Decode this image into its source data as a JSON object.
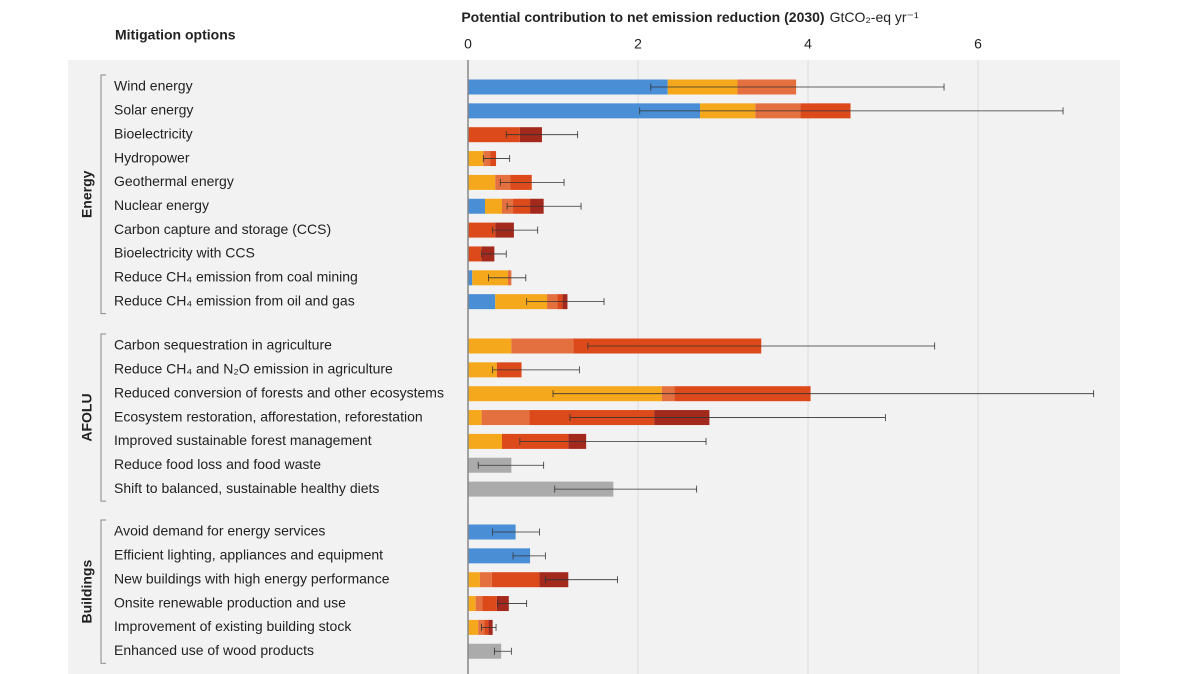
{
  "chart_data": {
    "type": "bar",
    "orientation": "horizontal",
    "stacked": true,
    "title": "Potential contribution to net emission reduction (2030)",
    "unit": "GtCO₂-eq yr⁻¹",
    "y_header": "Mitigation options",
    "xlim": [
      0,
      7.67
    ],
    "xticks": [
      0,
      2,
      4,
      6
    ],
    "grid": true,
    "colors": [
      "#4a8fd6",
      "#f5a81c",
      "#e5703f",
      "#dc4a1c",
      "#a3291d",
      "#ababab"
    ],
    "panels": [
      {
        "name": "Energy",
        "categories": [
          "Wind energy",
          "Solar energy",
          "Bioelectricity",
          "Hydropower",
          "Geothermal energy",
          "Nuclear energy",
          "Carbon capture and storage (CCS)",
          "Bioelectricity with CCS",
          "Reduce CH₄ emission from coal mining",
          "Reduce CH₄ emission from oil and gas"
        ],
        "series": [
          {
            "values": [
              2.35,
              2.73,
              0,
              0,
              0,
              0.2,
              0,
              0,
              0.05,
              0.32
            ]
          },
          {
            "values": [
              0.82,
              0.65,
              0,
              0.18,
              0.32,
              0.2,
              0,
              0,
              0.42,
              0.61
            ]
          },
          {
            "values": [
              0.69,
              0.53,
              0,
              0.08,
              0.18,
              0.13,
              0,
              0,
              0.04,
              0.12
            ]
          },
          {
            "values": [
              0,
              0.59,
              0.61,
              0.07,
              0.25,
              0.2,
              0.32,
              0.16,
              0,
              0.06
            ]
          },
          {
            "values": [
              0,
              0,
              0.26,
              0,
              0,
              0.16,
              0.22,
              0.15,
              0,
              0.06
            ]
          },
          {
            "values": [
              0,
              0,
              0,
              0,
              0,
              0,
              0,
              0,
              0,
              0
            ]
          }
        ],
        "error_low": [
          2.15,
          2.02,
          0.45,
          0.18,
          0.38,
          0.46,
          0.29,
          0.16,
          0.24,
          0.69
        ],
        "error_high": [
          5.6,
          7.0,
          1.29,
          0.49,
          1.13,
          1.33,
          0.82,
          0.45,
          0.68,
          1.6
        ]
      },
      {
        "name": "AFOLU",
        "categories": [
          "Carbon sequestration in agriculture",
          "Reduce CH₄ and N₂O emission in agriculture",
          "Reduced conversion of forests and other ecosystems",
          "Ecosystem restoration, afforestation, reforestation",
          "Improved sustainable forest management",
          "Reduce food loss and food waste",
          "Shift to balanced, sustainable healthy diets"
        ],
        "series": [
          {
            "values": [
              0,
              0,
              0,
              0,
              0,
              0,
              0
            ]
          },
          {
            "values": [
              0.51,
              0.34,
              2.28,
              0.16,
              0.4,
              0,
              0
            ]
          },
          {
            "values": [
              0.73,
              0,
              0.15,
              0.56,
              0,
              0,
              0
            ]
          },
          {
            "values": [
              2.21,
              0.29,
              1.6,
              1.47,
              0.78,
              0,
              0
            ]
          },
          {
            "values": [
              0,
              0,
              0,
              0.65,
              0.21,
              0,
              0
            ]
          },
          {
            "values": [
              0,
              0,
              0,
              0,
              0,
              0.51,
              1.71
            ]
          }
        ],
        "error_low": [
          1.41,
          0.29,
          1.0,
          1.2,
          0.61,
          0.12,
          1.02
        ],
        "error_high": [
          5.49,
          1.31,
          7.36,
          4.91,
          2.8,
          0.89,
          2.69
        ]
      },
      {
        "name": "Buildings",
        "categories": [
          "Avoid demand for energy services",
          "Efficient lighting, appliances and equipment",
          "New buildings with high energy performance",
          "Onsite renewable production and use",
          "Improvement of existing building stock",
          "Enhanced use of wood products"
        ],
        "series": [
          {
            "values": [
              0.56,
              0.73,
              0,
              0,
              0,
              0
            ]
          },
          {
            "values": [
              0,
              0,
              0.14,
              0.09,
              0.12,
              0
            ]
          },
          {
            "values": [
              0,
              0,
              0.14,
              0.08,
              0.07,
              0
            ]
          },
          {
            "values": [
              0,
              0,
              0.56,
              0.17,
              0.05,
              0
            ]
          },
          {
            "values": [
              0,
              0,
              0.34,
              0.14,
              0.05,
              0
            ]
          },
          {
            "values": [
              0,
              0,
              0,
              0,
              0,
              0.39
            ]
          }
        ],
        "error_low": [
          0.29,
          0.53,
          0.91,
          0.35,
          0.16,
          0.31
        ],
        "error_high": [
          0.84,
          0.91,
          1.76,
          0.69,
          0.33,
          0.51
        ]
      }
    ]
  }
}
